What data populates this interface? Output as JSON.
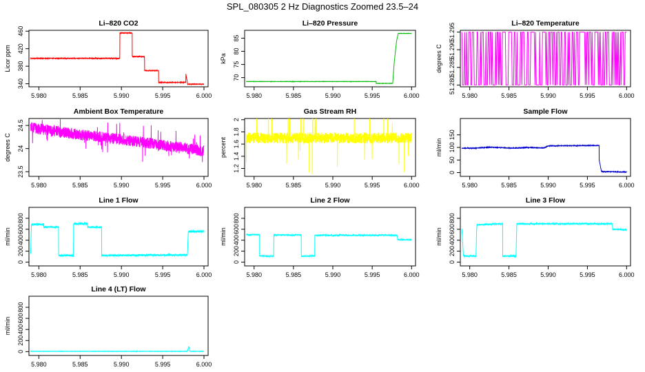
{
  "title": "SPL_080305  2 Hz Diagnostics Zoomed 23.5–24",
  "chart_data": [
    {
      "type": "line",
      "title": "Li–820 CO2",
      "ylabel": "Licor ppm",
      "color": "#ff0000",
      "xlim": [
        5.9788,
        6.0005
      ],
      "ylim": [
        333,
        462
      ],
      "xticks": [
        "5.980",
        "5.985",
        "5.990",
        "5.995",
        "6.000"
      ],
      "yticks": [
        340,
        380,
        420,
        460
      ],
      "noise": 0.8,
      "x": [
        5.979,
        5.9898,
        5.9898,
        5.9913,
        5.9913,
        5.9928,
        5.9928,
        5.9945,
        5.9945,
        5.9978,
        5.9978,
        5.998,
        5.998,
        6.0
      ],
      "y": [
        398,
        398,
        456,
        456,
        402,
        402,
        370,
        370,
        343,
        343,
        363,
        343,
        339,
        339
      ]
    },
    {
      "type": "line",
      "title": "Li–820 Pressure",
      "ylabel": "kPa",
      "color": "#00bb00",
      "xlim": [
        5.9788,
        6.0005
      ],
      "ylim": [
        66.5,
        88
      ],
      "xticks": [
        "5.980",
        "5.985",
        "5.990",
        "5.995",
        "6.000"
      ],
      "yticks": [
        70,
        75,
        80,
        85
      ],
      "noise": 0.05,
      "x": [
        5.979,
        5.9955,
        5.9955,
        5.9976,
        5.9978,
        5.9981,
        5.9983,
        6.0
      ],
      "y": [
        68.5,
        68.5,
        67.8,
        67.8,
        76,
        84,
        86.8,
        86.8
      ]
    },
    {
      "type": "line",
      "title": "Li–820 Temperature",
      "ylabel": "degrees C",
      "color": "#ff00ff",
      "xlim": [
        5.9788,
        6.0005
      ],
      "ylim": [
        51.2795,
        51.2955
      ],
      "xticks": [
        "5.980",
        "5.985",
        "5.990",
        "5.995",
        "6.000"
      ],
      "yticks": [
        51.28,
        51.285,
        51.29,
        51.295
      ],
      "style": "toggle",
      "x": [
        5.979,
        6.0
      ],
      "levels": [
        51.28,
        51.295
      ]
    },
    {
      "type": "line",
      "title": "Ambient Box Temperature",
      "ylabel": "degrees C",
      "color": "#ff00ff",
      "xlim": [
        5.9788,
        6.0005
      ],
      "ylim": [
        23.4,
        24.65
      ],
      "xticks": [
        "5.980",
        "5.985",
        "5.990",
        "5.995",
        "6.000"
      ],
      "yticks": [
        23.5,
        24.0,
        24.5
      ],
      "noise": 0.12,
      "spikes": 0.25,
      "x": [
        5.979,
        5.985,
        5.992,
        6.0
      ],
      "y": [
        24.45,
        24.3,
        24.15,
        23.95
      ]
    },
    {
      "type": "line",
      "title": "Gas Stream RH",
      "ylabel": "percent",
      "color": "#ffff00",
      "xlim": [
        5.9788,
        6.0005
      ],
      "ylim": [
        1.07,
        2.02
      ],
      "xticks": [
        "5.980",
        "5.985",
        "5.990",
        "5.995",
        "6.000"
      ],
      "yticks": [
        1.2,
        1.4,
        1.6,
        1.8,
        2.0
      ],
      "noise": 0.09,
      "spikes": 0.5,
      "x": [
        5.979,
        6.0
      ],
      "y": [
        1.7,
        1.7
      ]
    },
    {
      "type": "line",
      "title": "Sample Flow",
      "ylabel": "ml/min",
      "color": "#0000cc",
      "xlim": [
        5.9788,
        6.0005
      ],
      "ylim": [
        -15,
        215
      ],
      "xticks": [
        "5.980",
        "5.985",
        "5.990",
        "5.995",
        "6.000"
      ],
      "yticks": [
        0,
        50,
        100,
        150
      ],
      "noise": 1.2,
      "x": [
        5.979,
        5.9805,
        5.9825,
        5.9855,
        5.9875,
        5.9895,
        5.99,
        5.9965,
        5.9965,
        5.9968,
        6.0
      ],
      "y": [
        97,
        97,
        101,
        97,
        100,
        98,
        106,
        108,
        50,
        4,
        2
      ]
    },
    {
      "type": "line",
      "title": "Line 1 Flow",
      "ylabel": "ml/min",
      "color": "#00ffff",
      "xlim": [
        5.9788,
        6.0005
      ],
      "ylim": [
        -70,
        1000
      ],
      "xticks": [
        "5.980",
        "5.985",
        "5.990",
        "5.995",
        "6.000"
      ],
      "yticks": [
        0,
        200,
        400,
        600,
        800
      ],
      "noise": 18,
      "x": [
        5.979,
        5.9791,
        5.9806,
        5.9806,
        5.9824,
        5.9824,
        5.9842,
        5.9842,
        5.9859,
        5.9859,
        5.9876,
        5.9876,
        5.998,
        5.9981,
        6.0
      ],
      "y": [
        130,
        690,
        690,
        640,
        640,
        120,
        120,
        700,
        700,
        640,
        640,
        120,
        130,
        560,
        560
      ]
    },
    {
      "type": "line",
      "title": "Line 2 Flow",
      "ylabel": "ml/min",
      "color": "#00ffff",
      "xlim": [
        5.9788,
        6.0005
      ],
      "ylim": [
        -70,
        1000
      ],
      "xticks": [
        "5.980",
        "5.985",
        "5.990",
        "5.995",
        "6.000"
      ],
      "yticks": [
        0,
        200,
        400,
        600,
        800
      ],
      "noise": 12,
      "x": [
        5.979,
        5.9807,
        5.9807,
        5.9825,
        5.9825,
        5.986,
        5.986,
        5.9877,
        5.9877,
        5.9982,
        5.9982,
        6.0
      ],
      "y": [
        500,
        500,
        110,
        110,
        495,
        495,
        110,
        110,
        490,
        490,
        410,
        410
      ]
    },
    {
      "type": "line",
      "title": "Line 3 Flow",
      "ylabel": "ml/min",
      "color": "#00ffff",
      "xlim": [
        5.9788,
        6.0005
      ],
      "ylim": [
        -70,
        1000
      ],
      "xticks": [
        "5.980",
        "5.985",
        "5.990",
        "5.995",
        "6.000"
      ],
      "yticks": [
        0,
        200,
        400,
        600,
        800
      ],
      "noise": 14,
      "x": [
        5.979,
        5.9792,
        5.9808,
        5.9809,
        5.9842,
        5.9842,
        5.9859,
        5.986,
        5.9982,
        5.9982,
        6.0
      ],
      "y": [
        600,
        110,
        110,
        680,
        700,
        110,
        110,
        700,
        700,
        600,
        590
      ]
    },
    {
      "type": "line",
      "title": "Line 4 (LT) Flow",
      "ylabel": "ml/min",
      "color": "#00ffff",
      "xlim": [
        5.9788,
        6.0005
      ],
      "ylim": [
        -70,
        1000
      ],
      "xticks": [
        "5.980",
        "5.985",
        "5.990",
        "5.995",
        "6.000"
      ],
      "yticks": [
        0,
        200,
        400,
        600,
        800
      ],
      "noise": 3,
      "x": [
        5.979,
        5.998,
        5.99815,
        5.9983,
        6.0
      ],
      "y": [
        5,
        5,
        95,
        5,
        5
      ]
    }
  ]
}
